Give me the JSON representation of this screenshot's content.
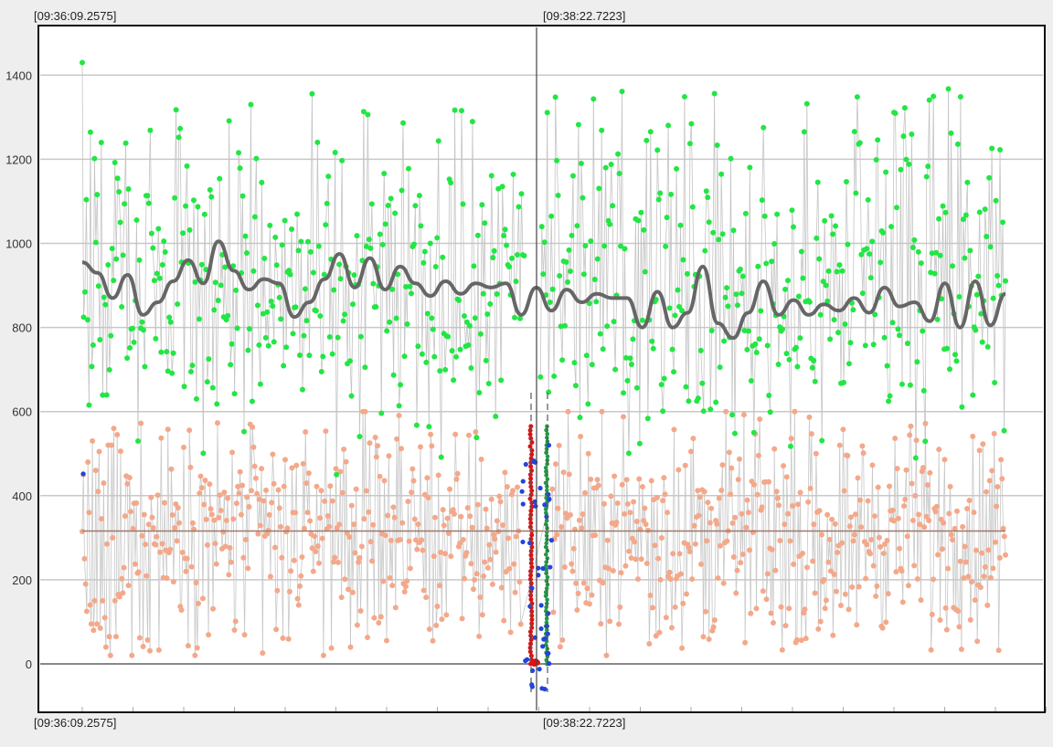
{
  "chart_data": {
    "type": "scatter",
    "title": "",
    "xlabel": "",
    "ylabel": "",
    "y_ticks": [
      0,
      200,
      400,
      600,
      800,
      1000,
      1200,
      1400
    ],
    "y_tick_labels": [
      "0",
      "200",
      "400",
      "600",
      "800",
      "1000",
      "1200",
      "1400"
    ],
    "ylim": [
      -120,
      1480
    ],
    "x_range_labels": {
      "start": "[09:36:09.2575]",
      "cursor": "[09:38:22.7223]"
    },
    "grid": true,
    "legend": "none",
    "series": [
      {
        "color": "#22e644",
        "kind": "points",
        "value_range": [
          450,
          1460
        ],
        "sample_values": [
          1430,
          1240,
          1050,
          960,
          805,
          625,
          1345,
          1345,
          1225,
          1175,
          1300,
          1275,
          1225,
          1460,
          1435,
          1255,
          1320,
          1395,
          1230,
          1320,
          1340,
          1300,
          1315,
          1360,
          1305,
          1425,
          1340,
          1265,
          1220,
          1295,
          1125,
          1290,
          1240,
          1200,
          1185,
          1295,
          1240,
          1215,
          1215,
          1205,
          1290,
          1195,
          1210,
          1240,
          1230,
          1300,
          1205,
          1100
        ]
      },
      {
        "color": "#f4a88a",
        "kind": "points",
        "value_range": [
          20,
          600
        ],
        "mean_line_value": 316,
        "sample_values": [
          315,
          450,
          250,
          190,
          125,
          480,
          360,
          140,
          95,
          530,
          80,
          150,
          460,
          95,
          410,
          505,
          85,
          345,
          150,
          430,
          110,
          40,
          285,
          520,
          65,
          20,
          520,
          300,
          560,
          150,
          65,
          545,
          165
        ]
      },
      {
        "color": "#2244dd",
        "kind": "points",
        "value_range": [
          -60,
          520
        ],
        "sample_values": [
          452,
          520,
          480,
          410,
          380,
          350,
          290,
          230,
          180,
          120,
          60,
          -60
        ]
      },
      {
        "color": "#dd1111",
        "kind": "points",
        "value_range": [
          0,
          565
        ],
        "sample_values": [
          565,
          520,
          470,
          420,
          370,
          320,
          270,
          220,
          170,
          120,
          70,
          20,
          0
        ]
      },
      {
        "color": "#229944",
        "kind": "points",
        "value_range": [
          0,
          565
        ],
        "sample_values": [
          565,
          510,
          455,
          400,
          345,
          290,
          235,
          180,
          125,
          70,
          15
        ]
      },
      {
        "color": "#666666",
        "kind": "smoothed-line",
        "values": [
          955,
          930,
          870,
          925,
          830,
          860,
          910,
          960,
          905,
          1005,
          935,
          890,
          915,
          905,
          825,
          860,
          915,
          975,
          895,
          965,
          890,
          945,
          905,
          875,
          910,
          880,
          905,
          895,
          905,
          830,
          895,
          840,
          890,
          860,
          880,
          870,
          870,
          800,
          885,
          800,
          835,
          945,
          810,
          775,
          835,
          910,
          830,
          865,
          830,
          855,
          840,
          870,
          835,
          895,
          850,
          860,
          815,
          905,
          800,
          910,
          805,
          880
        ]
      }
    ]
  }
}
